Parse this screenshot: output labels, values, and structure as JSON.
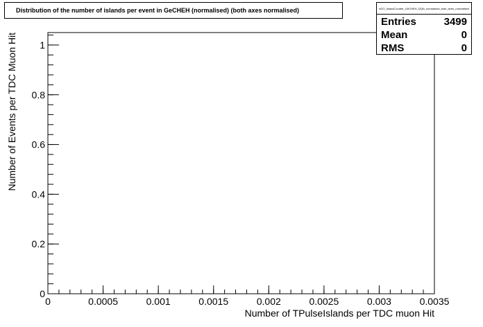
{
  "chart_data": {
    "type": "bar",
    "title": "Distribution of the number of islands per event in GeCHEH (normalised) (both axes normalised)",
    "xlabel": "Number of TPulseIslands per TDC muon Hit",
    "ylabel": "Number of Events per TDC Muon Hit",
    "xlim": [
      0,
      0.0035
    ],
    "ylim": [
      0,
      1.05
    ],
    "x_ticks": [
      {
        "value": 0,
        "label": "0"
      },
      {
        "value": 0.0005,
        "label": "0.0005"
      },
      {
        "value": 0.001,
        "label": "0.001"
      },
      {
        "value": 0.0015,
        "label": "0.0015"
      },
      {
        "value": 0.002,
        "label": "0.002"
      },
      {
        "value": 0.0025,
        "label": "0.0025"
      },
      {
        "value": 0.003,
        "label": "0.003"
      },
      {
        "value": 0.0035,
        "label": "0.0035"
      }
    ],
    "y_ticks": [
      {
        "value": 0,
        "label": "0"
      },
      {
        "value": 0.2,
        "label": "0.2"
      },
      {
        "value": 0.4,
        "label": "0.4"
      },
      {
        "value": 0.6,
        "label": "0.6"
      },
      {
        "value": 0.8,
        "label": "0.8"
      },
      {
        "value": 1,
        "label": "1"
      }
    ],
    "categories": [],
    "values": [],
    "grid": false,
    "legend": "none"
  },
  "stats": {
    "name": "hGO_IslandCounter_GeCHEH_DQN_normalised_both_axes_normalised",
    "rows": [
      {
        "label": "Entries",
        "value": "3499"
      },
      {
        "label": "Mean",
        "value": "0"
      },
      {
        "label": "RMS",
        "value": "0"
      }
    ]
  }
}
